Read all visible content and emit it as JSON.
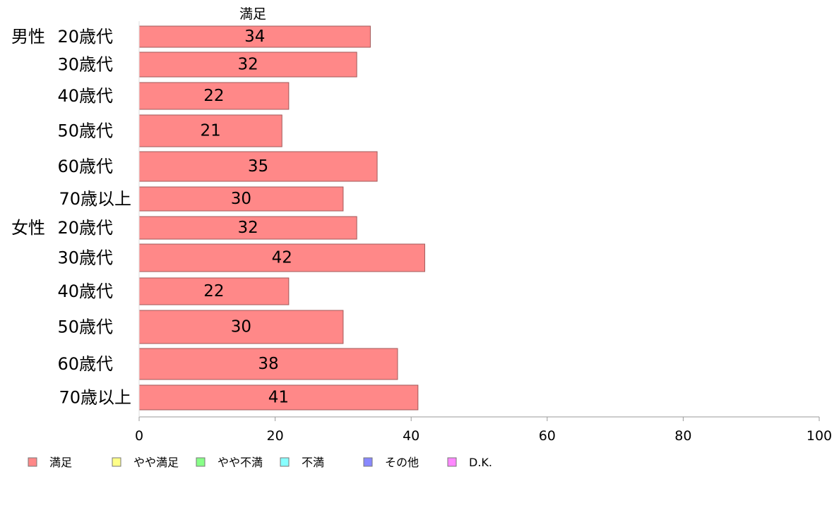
{
  "chart_data": {
    "type": "bar",
    "orientation": "horizontal",
    "series_header": "満足",
    "groups": [
      {
        "label": "男性",
        "start_index": 0
      },
      {
        "label": "女性",
        "start_index": 6
      }
    ],
    "categories": [
      "20歳代",
      "30歳代",
      "40歳代",
      "50歳代",
      "60歳代",
      "70歳以上",
      "20歳代",
      "30歳代",
      "40歳代",
      "50歳代",
      "60歳代",
      "70歳以上"
    ],
    "series": [
      {
        "name": "満足",
        "values": [
          34,
          32,
          22,
          21,
          35,
          30,
          32,
          42,
          22,
          30,
          38,
          41
        ]
      }
    ],
    "xlim": [
      0,
      100
    ],
    "xticks": [
      0,
      20,
      40,
      60,
      80,
      100
    ],
    "grid": false,
    "legend": {
      "position": "bottom-left",
      "items": [
        {
          "label": "満足",
          "color": "#ff8888"
        },
        {
          "label": "やや満足",
          "color": "#ffff88"
        },
        {
          "label": "やや不満",
          "color": "#88ff88"
        },
        {
          "label": "不満",
          "color": "#88ffff"
        },
        {
          "label": "その他",
          "color": "#8888ff"
        },
        {
          "label": "D.K.",
          "color": "#ff88ff"
        }
      ]
    },
    "colors": {
      "bar_fill": "#ff8888",
      "bar_stroke": "#a05a5a",
      "axis": "#999999"
    }
  }
}
